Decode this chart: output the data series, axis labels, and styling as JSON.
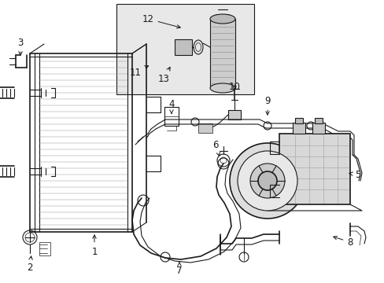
{
  "bg_color": "#ffffff",
  "line_color": "#1a1a1a",
  "label_color": "#1a1a1a",
  "font_size": 8.5,
  "inset_bg": "#e8e8e8",
  "gray_fill": "#d0d0d0",
  "mid_gray": "#888888"
}
